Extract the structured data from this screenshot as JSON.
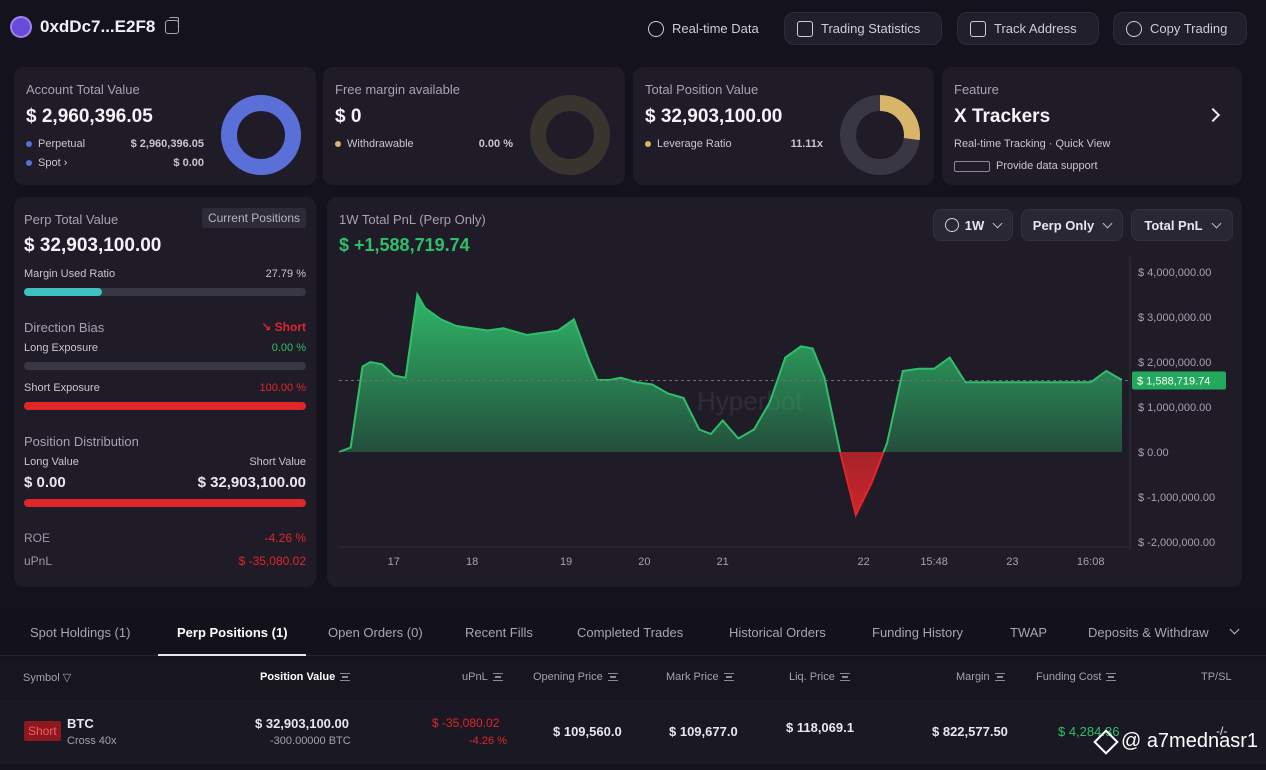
{
  "header": {
    "address": "0xdDc7...E2F8",
    "buttons": [
      {
        "label": "Real-time Data",
        "icon": "refresh-icon"
      },
      {
        "label": "Trading Statistics",
        "icon": "stats-icon"
      },
      {
        "label": "Track Address",
        "icon": "monitor-icon"
      },
      {
        "label": "Copy Trading",
        "icon": "copy-trading-icon"
      }
    ]
  },
  "account": {
    "title": "Account Total Value",
    "value": "$ 2,960,396.05",
    "perpetual_label": "Perpetual",
    "perpetual_value": "$ 2,960,396.05",
    "spot_label": "Spot",
    "spot_value": "$ 0.00",
    "perpetual_fraction": 1.0,
    "color": "#5b6fd8"
  },
  "margin": {
    "title": "Free margin available",
    "value": "$ 0",
    "withdrawable_label": "Withdrawable",
    "withdrawable_value": "0.00 %",
    "fraction": 0.0
  },
  "position": {
    "title": "Total Position Value",
    "value": "$ 32,903,100.00",
    "leverage_label": "Leverage Ratio",
    "leverage_value": "11.11x",
    "fraction": 0.27,
    "color": "#d9b56a"
  },
  "feature": {
    "title": "Feature",
    "name": "X Trackers",
    "desc": "Real-time Tracking · Quick View",
    "support": "Provide data support"
  },
  "perp": {
    "title": "Perp Total Value",
    "button": "Current Positions",
    "value": "$ 32,903,100.00",
    "margin_used_label": "Margin Used Ratio",
    "margin_used_value": "27.79 %",
    "margin_used_fraction": 0.2779,
    "direction_label": "Direction Bias",
    "direction_value": "Short",
    "long_exposure_label": "Long Exposure",
    "long_exposure_value": "0.00 %",
    "short_exposure_label": "Short Exposure",
    "short_exposure_value": "100.00 %",
    "short_exposure_fraction": 1.0,
    "distribution_label": "Position Distribution",
    "long_value_label": "Long Value",
    "short_value_label": "Short Value",
    "long_value": "$ 0.00",
    "short_value": "$ 32,903,100.00",
    "roe_label": "ROE",
    "roe_value": "-4.26 %",
    "upnl_label": "uPnL",
    "upnl_value": "$ -35,080.02"
  },
  "pnl": {
    "title": "1W Total PnL (Perp Only)",
    "value": "$ +1,588,719.74",
    "range_button": "1W",
    "filter_button": "Perp Only",
    "metric_button": "Total PnL",
    "current_label": "$ 1,588,719.74",
    "watermark": "Hyperbot"
  },
  "chart_data": {
    "type": "area",
    "title": "1W Total PnL (Perp Only)",
    "ylim": [
      -2000000,
      4000000
    ],
    "yticks": [
      4000000,
      3000000,
      2000000,
      1000000,
      0,
      -1000000,
      -2000000
    ],
    "ytick_labels": [
      "$ 4,000,000.00",
      "$ 3,000,000.00",
      "$ 2,000,000.00",
      "$ 1,000,000.00",
      "$ 0.00",
      "$ -1,000,000.00",
      "$ -2,000,000.00"
    ],
    "xtick_labels": [
      "17",
      "18",
      "19",
      "20",
      "21",
      "22",
      "15:48",
      "23",
      "16:08"
    ],
    "xtick_positions": [
      0.07,
      0.17,
      0.29,
      0.39,
      0.49,
      0.67,
      0.76,
      0.86,
      0.96
    ],
    "current": 1588719.74,
    "x": [
      0,
      0.015,
      0.03,
      0.04,
      0.055,
      0.07,
      0.085,
      0.1,
      0.11,
      0.13,
      0.15,
      0.17,
      0.19,
      0.21,
      0.24,
      0.26,
      0.28,
      0.3,
      0.32,
      0.33,
      0.345,
      0.36,
      0.38,
      0.4,
      0.42,
      0.44,
      0.46,
      0.475,
      0.49,
      0.51,
      0.53,
      0.55,
      0.57,
      0.59,
      0.605,
      0.62,
      0.64,
      0.66,
      0.68,
      0.7,
      0.72,
      0.74,
      0.76,
      0.78,
      0.8,
      0.82,
      0.84,
      0.86,
      0.88,
      0.9,
      0.92,
      0.94,
      0.96,
      0.98,
      1.0
    ],
    "values": [
      0,
      100000,
      1900000,
      2000000,
      1950000,
      1700000,
      1650000,
      3500000,
      3200000,
      2950000,
      2800000,
      2750000,
      2700000,
      2750000,
      2600000,
      2650000,
      2700000,
      2950000,
      2000000,
      1600000,
      1600000,
      1650000,
      1550000,
      1500000,
      1300000,
      1200000,
      500000,
      400000,
      700000,
      300000,
      500000,
      1100000,
      2100000,
      2350000,
      2300000,
      1650000,
      0,
      -1400000,
      -700000,
      200000,
      1800000,
      1850000,
      1850000,
      2100000,
      1550000,
      1550000,
      1550000,
      1550000,
      1550000,
      1550000,
      1550000,
      1550000,
      1550000,
      1800000,
      1600000
    ]
  },
  "tabs": [
    {
      "label": "Spot Holdings (1)",
      "active": false
    },
    {
      "label": "Perp Positions (1)",
      "active": true
    },
    {
      "label": "Open Orders (0)",
      "active": false
    },
    {
      "label": "Recent Fills",
      "active": false
    },
    {
      "label": "Completed Trades",
      "active": false
    },
    {
      "label": "Historical Orders",
      "active": false
    },
    {
      "label": "Funding History",
      "active": false
    },
    {
      "label": "TWAP",
      "active": false
    },
    {
      "label": "Deposits & Withdraw",
      "active": false
    }
  ],
  "table": {
    "headers": {
      "symbol": "Symbol",
      "position_value": "Position Value",
      "upnl": "uPnL",
      "opening_price": "Opening Price",
      "mark_price": "Mark Price",
      "liq_price": "Liq. Price",
      "margin": "Margin",
      "funding_cost": "Funding Cost",
      "tpsl": "TP/SL"
    },
    "row": {
      "side": "Short",
      "symbol": "BTC",
      "margin_mode": "Cross 40x",
      "position_value": "$ 32,903,100.00",
      "size": "-300.00000 BTC",
      "upnl": "$ -35,080.02",
      "upnl_pct": "-4.26 %",
      "opening_price": "$ 109,560.0",
      "mark_price": "$ 109,677.0",
      "liq_price": "$ 118,069.1",
      "margin": "$ 822,577.50",
      "funding_cost": "$ 4,284.36",
      "tpsl": "-/-"
    }
  },
  "watermark_user": "@ a7mednasr1",
  "colors": {
    "green": "#2fbf6a",
    "red": "#e0262a",
    "accent_teal": "#3fc1c0"
  }
}
